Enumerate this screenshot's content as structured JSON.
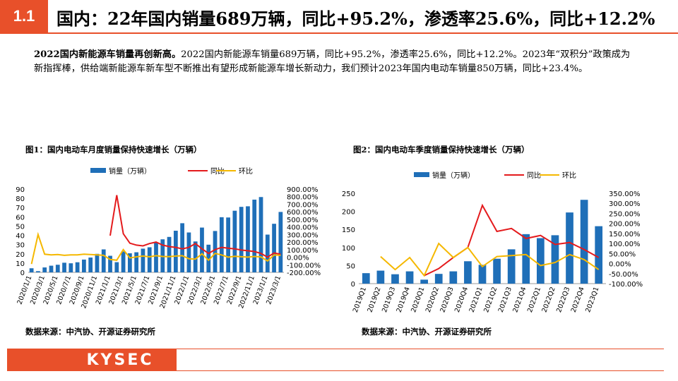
{
  "header": {
    "section_number": "1.1",
    "title": "国内：22年国内销量689万辆，同比+95.2%，渗透率25.6%，同比+12.2%"
  },
  "intro": {
    "bold_lead": "2022国内新能源车销量再创新高。",
    "body": "2022国内新能源车销量689万辆，同比+95.2%，渗透率25.6%，同比+12.2%。2023年“双积分”政策成为新指挥棒，供给端新能源车新车型不断推出有望形成新能源车增长新动力，我们预计2023年国内电动车销量850万辆，同比+23.4%。"
  },
  "figures": {
    "fig1_title": "图1：国内电动车月度销量保持快速增长（万辆）",
    "fig2_title": "图2：国内电动车季度销量保持快速增长（万辆）",
    "fig1_source": "数据来源：中汽协、开源证券研究所",
    "fig2_source": "数据来源：中汽协、开源证券研究所"
  },
  "footer": {
    "logo": "KYSEC"
  },
  "colors": {
    "accent": "#E8502A",
    "bar": "#1F6FB8",
    "yoy_line": "#E41A1C",
    "mom_line": "#F5B800"
  },
  "chart_data": [
    {
      "type": "bar",
      "title": "图1：国内电动车月度销量保持快速增长（万辆）",
      "legend": [
        "销量（万辆）",
        "同比",
        "环比"
      ],
      "legend_position": "top",
      "x_tick_labels": [
        "2020/1/1",
        "2020/3/1",
        "2020/5/1",
        "2020/7/1",
        "2020/9/1",
        "2020/11/1",
        "2021/1/1",
        "2021/3/1",
        "2021/5/1",
        "2021/7/1",
        "2021/9/1",
        "2021/11/1",
        "2022/1/1",
        "2022/3/1",
        "2022/5/1",
        "2022/7/1",
        "2022/9/1",
        "2022/11/1",
        "2023/1/1",
        "2023/3/1"
      ],
      "categories": [
        "2020/1",
        "2020/2",
        "2020/3",
        "2020/4",
        "2020/5",
        "2020/6",
        "2020/7",
        "2020/8",
        "2020/9",
        "2020/10",
        "2020/11",
        "2020/12",
        "2021/1",
        "2021/2",
        "2021/3",
        "2021/4",
        "2021/5",
        "2021/6",
        "2021/7",
        "2021/8",
        "2021/9",
        "2021/10",
        "2021/11",
        "2021/12",
        "2022/1",
        "2022/2",
        "2022/3",
        "2022/4",
        "2022/5",
        "2022/6",
        "2022/7",
        "2022/8",
        "2022/9",
        "2022/10",
        "2022/11",
        "2022/12",
        "2023/1",
        "2023/2",
        "2023/3"
      ],
      "series": [
        {
          "name": "销量（万辆）",
          "axis": "left",
          "values": [
            4.4,
            1.3,
            5.3,
            7.2,
            8.2,
            10.4,
            9.8,
            10.9,
            13.8,
            16.0,
            20.0,
            24.8,
            17.9,
            11.0,
            22.6,
            20.6,
            21.7,
            25.6,
            27.1,
            32.1,
            35.7,
            38.3,
            45.0,
            53.1,
            43.1,
            33.4,
            48.4,
            29.9,
            44.7,
            59.6,
            59.3,
            66.6,
            70.8,
            71.4,
            78.6,
            81.4,
            40.8,
            52.5,
            65.3
          ]
        },
        {
          "name": "同比",
          "axis": "right",
          "values": [
            null,
            null,
            null,
            null,
            null,
            null,
            null,
            null,
            null,
            null,
            null,
            null,
            285,
            820,
            310,
            185,
            160,
            150,
            180,
            200,
            160,
            140,
            130,
            110,
            130,
            180,
            110,
            50,
            100,
            130,
            120,
            110,
            95,
            85,
            75,
            50,
            0,
            55,
            40
          ]
        },
        {
          "name": "环比",
          "axis": "right",
          "values": [
            -90,
            300,
            40,
            30,
            35,
            25,
            30,
            30,
            40,
            35,
            30,
            25,
            -30,
            -40,
            100,
            -10,
            5,
            15,
            5,
            20,
            10,
            8,
            15,
            20,
            -20,
            -25,
            45,
            -40,
            50,
            30,
            0,
            12,
            6,
            1,
            10,
            4,
            -50,
            29,
            25
          ]
        }
      ],
      "ylim_left": [
        0,
        90
      ],
      "yticks_left": [
        "0",
        "10",
        "20",
        "30",
        "40",
        "50",
        "60",
        "70",
        "80",
        "90"
      ],
      "ylim_right": [
        -200,
        900
      ],
      "yticks_right": [
        "-200.00%",
        "-100.00%",
        "0.00%",
        "100.00%",
        "200.00%",
        "300.00%",
        "400.00%",
        "500.00%",
        "600.00%",
        "700.00%",
        "800.00%",
        "900.00%"
      ],
      "grid": false
    },
    {
      "type": "bar",
      "title": "图2：国内电动车季度销量保持快速增长（万辆）",
      "legend": [
        "销量（万辆）",
        "同比",
        "环比"
      ],
      "legend_position": "top",
      "categories": [
        "2019Q1",
        "2019Q2",
        "2019Q3",
        "2019Q4",
        "2020Q1",
        "2020Q2",
        "2020Q3",
        "2020Q4",
        "2021Q1",
        "2021Q2",
        "2021Q3",
        "2021Q4",
        "2022Q1",
        "2022Q2",
        "2022Q3",
        "2022Q4",
        "2023Q1"
      ],
      "series": [
        {
          "name": "销量（万辆）",
          "axis": "left",
          "values": [
            29,
            36,
            26,
            34,
            11,
            27,
            34,
            62,
            52,
            69,
            95,
            137,
            126,
            134,
            197,
            232,
            159
          ]
        },
        {
          "name": "同比",
          "axis": "right",
          "values": [
            null,
            null,
            null,
            null,
            -60,
            -25,
            30,
            80,
            290,
            160,
            175,
            125,
            140,
            95,
            105,
            70,
            30
          ]
        },
        {
          "name": "环比",
          "axis": "right",
          "values": [
            null,
            35,
            -30,
            30,
            -60,
            100,
            30,
            80,
            -15,
            35,
            40,
            45,
            -10,
            5,
            45,
            20,
            -30
          ]
        }
      ],
      "ylim_left": [
        0,
        250
      ],
      "yticks_left": [
        "0",
        "50",
        "100",
        "150",
        "200",
        "250"
      ],
      "ylim_right": [
        -100,
        350
      ],
      "yticks_right": [
        "-100.00%",
        "-50.00%",
        "0.00%",
        "50.00%",
        "100.00%",
        "150.00%",
        "200.00%",
        "250.00%",
        "300.00%",
        "350.00%"
      ],
      "grid": false
    }
  ]
}
